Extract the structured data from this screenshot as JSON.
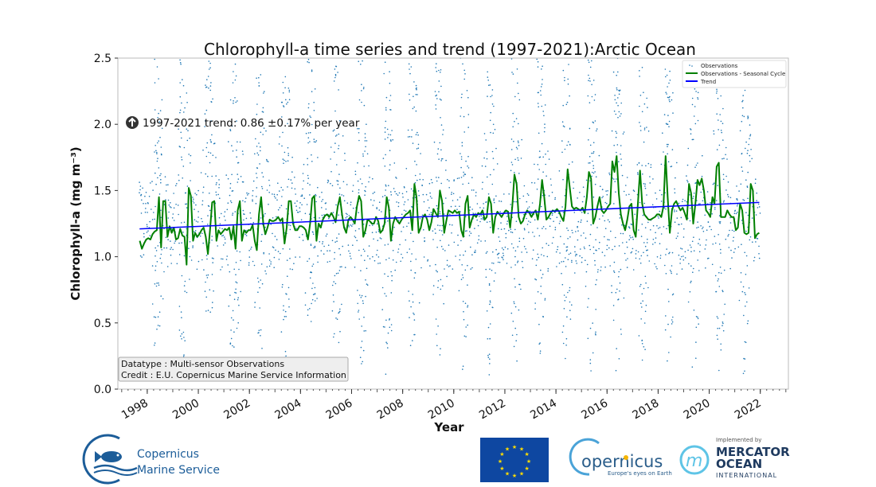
{
  "chart_data": {
    "type": "line",
    "title": "Chlorophyll-a time series and trend (1997-2021):Arctic Ocean",
    "xlabel": "Year",
    "ylabel": "Chlorophyll-a (mg m⁻³)",
    "xlim": [
      1996.85,
      2023.1
    ],
    "ylim": [
      0.0,
      2.5
    ],
    "x_ticks": [
      "1998",
      "2000",
      "2002",
      "2004",
      "2006",
      "2008",
      "2010",
      "2012",
      "2014",
      "2016",
      "2018",
      "2020",
      "2022"
    ],
    "y_ticks": [
      "0.0",
      "0.5",
      "1.0",
      "1.5",
      "2.0",
      "2.5"
    ],
    "grid": false,
    "legend_position": "top-right",
    "legend": [
      "Observations",
      "Observations - Seasonal Cycle",
      "Trend"
    ],
    "colors": {
      "observations": "#1f77b4",
      "seasonal": "#008000",
      "trend": "#0000ff"
    },
    "annotation_trend": "1997-2021 trend: 0.86 ±0.17% per year",
    "trend_direction": "up",
    "info_box": [
      "Datatype : Multi-sensor Observations",
      "Credit : E.U. Copernicus Marine Service Information"
    ],
    "trend": {
      "x": [
        1997.7,
        2021.96
      ],
      "y": [
        1.21,
        1.41
      ]
    },
    "seasonal_series_start": "1997-09",
    "seasonal_series_monthly": {
      "1997": [
        1.12,
        1.06,
        1.1,
        1.13
      ],
      "1998": [
        1.14,
        1.13,
        1.17,
        1.19,
        1.2,
        1.45,
        1.07,
        1.42,
        1.42,
        1.15,
        1.23,
        1.18
      ],
      "1999": [
        1.22,
        1.13,
        1.14,
        1.21,
        1.16,
        1.15,
        0.94,
        1.52,
        1.46,
        1.12,
        1.18,
        1.15
      ],
      "2000": [
        1.17,
        1.2,
        1.22,
        1.15,
        1.02,
        1.2,
        1.41,
        1.42,
        1.12,
        1.2,
        1.17,
        1.19
      ],
      "2001": [
        1.21,
        1.2,
        1.22,
        1.13,
        1.23,
        1.06,
        1.35,
        1.42,
        1.12,
        1.2,
        1.18,
        1.2
      ],
      "2002": [
        1.2,
        1.24,
        1.12,
        1.05,
        1.32,
        1.45,
        1.25,
        1.17,
        1.22,
        1.28,
        1.27,
        1.27
      ],
      "2003": [
        1.28,
        1.3,
        1.27,
        1.29,
        1.1,
        1.22,
        1.42,
        1.42,
        1.25,
        1.2,
        1.2,
        1.23
      ],
      "2004": [
        1.23,
        1.22,
        1.2,
        1.13,
        1.25,
        1.44,
        1.46,
        1.12,
        1.25,
        1.22,
        1.28,
        1.31
      ],
      "2005": [
        1.32,
        1.3,
        1.33,
        1.3,
        1.26,
        1.38,
        1.45,
        1.32,
        1.22,
        1.18,
        1.28,
        1.3
      ],
      "2006": [
        1.28,
        1.25,
        1.38,
        1.46,
        1.42,
        1.15,
        1.2,
        1.28,
        1.27,
        1.25,
        1.25,
        1.3
      ],
      "2007": [
        1.27,
        1.18,
        1.2,
        1.25,
        1.45,
        1.37,
        1.12,
        1.25,
        1.3,
        1.27,
        1.25,
        1.28
      ],
      "2008": [
        1.3,
        1.32,
        1.33,
        1.35,
        1.2,
        1.55,
        1.45,
        1.18,
        1.22,
        1.3,
        1.32,
        1.28
      ],
      "2009": [
        1.2,
        1.26,
        1.36,
        1.33,
        1.3,
        1.5,
        1.42,
        1.18,
        1.27,
        1.35,
        1.34,
        1.33
      ],
      "2010": [
        1.35,
        1.33,
        1.34,
        1.2,
        1.15,
        1.4,
        1.46,
        1.22,
        1.28,
        1.32,
        1.3,
        1.33
      ],
      "2011": [
        1.32,
        1.35,
        1.28,
        1.3,
        1.45,
        1.4,
        1.18,
        1.3,
        1.34,
        1.32,
        1.3,
        1.33
      ],
      "2012": [
        1.35,
        1.34,
        1.22,
        1.38,
        1.62,
        1.55,
        1.3,
        1.25,
        1.27,
        1.32,
        1.35,
        1.33
      ],
      "2013": [
        1.3,
        1.33,
        1.35,
        1.28,
        1.4,
        1.58,
        1.45,
        1.28,
        1.3,
        1.33,
        1.35,
        1.34
      ],
      "2014": [
        1.36,
        1.34,
        1.3,
        1.27,
        1.38,
        1.66,
        1.52,
        1.38,
        1.36,
        1.37,
        1.36,
        1.35
      ],
      "2015": [
        1.37,
        1.33,
        1.45,
        1.64,
        1.59,
        1.25,
        1.3,
        1.38,
        1.45,
        1.35,
        1.33,
        1.35
      ],
      "2016": [
        1.38,
        1.4,
        1.72,
        1.64,
        1.76,
        1.48,
        1.32,
        1.25,
        1.2,
        1.28,
        1.38,
        1.4
      ],
      "2017": [
        1.2,
        1.15,
        1.4,
        1.65,
        1.4,
        1.32,
        1.3,
        1.28,
        1.28,
        1.29,
        1.3,
        1.32
      ],
      "2018": [
        1.32,
        1.3,
        1.38,
        1.76,
        1.45,
        1.18,
        1.35,
        1.4,
        1.42,
        1.38,
        1.35,
        1.37
      ],
      "2019": [
        1.33,
        1.28,
        1.55,
        1.48,
        1.25,
        1.4,
        1.58,
        1.54,
        1.59,
        1.5,
        1.35,
        1.33
      ],
      "2020": [
        1.3,
        1.45,
        1.4,
        1.68,
        1.71,
        1.3,
        1.3,
        1.3,
        1.35,
        1.32,
        1.3,
        1.3
      ],
      "2021": [
        1.2,
        1.22,
        1.4,
        1.35,
        1.18,
        1.17,
        1.18,
        1.55,
        1.5,
        1.14,
        1.17,
        1.18
      ]
    },
    "observations_monthly_range": [
      [
        0.9,
        1.6
      ],
      [
        0.9,
        1.7
      ],
      [
        0.6,
        2.0
      ],
      [
        0.3,
        2.5
      ],
      [
        0.1,
        2.5
      ],
      [
        0.2,
        2.5
      ],
      [
        0.4,
        2.3
      ],
      [
        0.6,
        2.0
      ],
      [
        0.8,
        1.8
      ],
      [
        0.9,
        1.6
      ],
      [
        0.9,
        1.5
      ],
      [
        0.9,
        1.5
      ]
    ]
  },
  "logos": {
    "cmems_line1": "Copernicus",
    "cmems_line2": "Marine Service",
    "copernicus_name": "opernicus",
    "copernicus_tagline": "Europe's eyes on Earth",
    "mercator_top": "Implemented by",
    "mercator_line1": "MERCATOR",
    "mercator_line2": "OCEAN",
    "mercator_line3": "INTERNATIONAL"
  }
}
